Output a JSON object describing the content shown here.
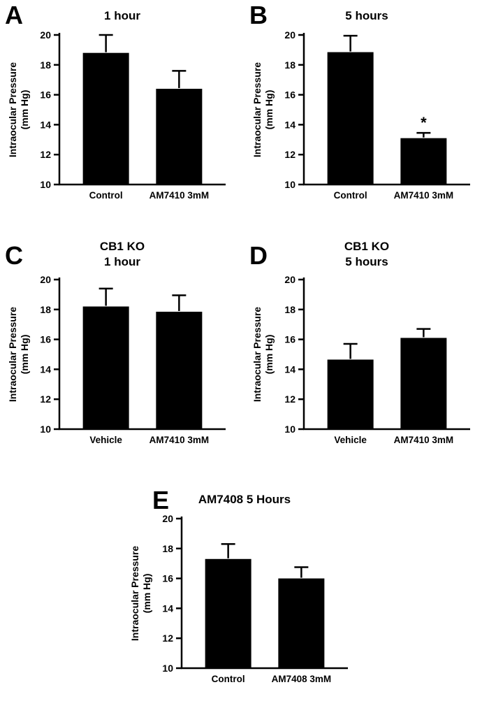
{
  "figure": {
    "background": "#ffffff",
    "bar_color": "#000000",
    "axis_color": "#000000"
  },
  "chart_data": [
    {
      "type": "bar",
      "panel": "A",
      "title": "1 hour",
      "ylabel_lines": [
        "Intraocular Pressure",
        "(mm Hg)"
      ],
      "categories": [
        "Control",
        "AM7410 3mM"
      ],
      "values": [
        18.8,
        16.4
      ],
      "errors_up": [
        1.2,
        1.2
      ],
      "ylim": [
        10,
        20
      ],
      "yticks": [
        10,
        12,
        14,
        16,
        18,
        20
      ],
      "annotations": []
    },
    {
      "type": "bar",
      "panel": "B",
      "title": "5 hours",
      "ylabel_lines": [
        "Intraocular Pressure",
        "(mm Hg)"
      ],
      "categories": [
        "Control",
        "AM7410 3mM"
      ],
      "values": [
        18.85,
        13.1
      ],
      "errors_up": [
        1.1,
        0.35
      ],
      "ylim": [
        10,
        20
      ],
      "yticks": [
        10,
        12,
        14,
        16,
        18,
        20
      ],
      "annotations": [
        {
          "bar": 1,
          "text": "*"
        }
      ]
    },
    {
      "type": "bar",
      "panel": "C",
      "title": "CB1 KO\n1 hour",
      "ylabel_lines": [
        "Intraocular Pressure",
        "(mm Hg)"
      ],
      "categories": [
        "Vehicle",
        "AM7410 3mM"
      ],
      "values": [
        18.2,
        17.85
      ],
      "errors_up": [
        1.2,
        1.1
      ],
      "ylim": [
        10,
        20
      ],
      "yticks": [
        10,
        12,
        14,
        16,
        18,
        20
      ],
      "annotations": []
    },
    {
      "type": "bar",
      "panel": "D",
      "title": "CB1 KO\n5 hours",
      "ylabel_lines": [
        "Intraocular Pressure",
        "(mm Hg)"
      ],
      "categories": [
        "Vehicle",
        "AM7410 3mM"
      ],
      "values": [
        14.65,
        16.1
      ],
      "errors_up": [
        1.05,
        0.6
      ],
      "ylim": [
        10,
        20
      ],
      "yticks": [
        10,
        12,
        14,
        16,
        18,
        20
      ],
      "annotations": []
    },
    {
      "type": "bar",
      "panel": "E",
      "title": "AM7408 5 Hours",
      "ylabel_lines": [
        "Intraocular Pressure",
        "(mm Hg)"
      ],
      "categories": [
        "Control",
        "AM7408 3mM"
      ],
      "values": [
        17.3,
        16.0
      ],
      "errors_up": [
        1.0,
        0.75
      ],
      "ylim": [
        10,
        20
      ],
      "yticks": [
        10,
        12,
        14,
        16,
        18,
        20
      ],
      "annotations": []
    }
  ]
}
